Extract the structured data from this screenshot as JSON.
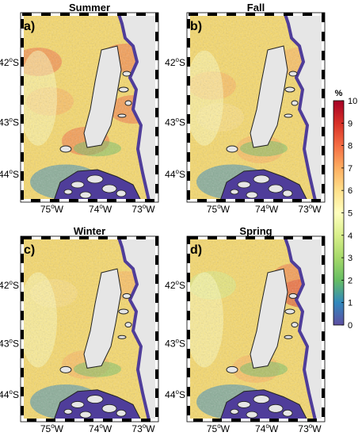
{
  "figure": {
    "panels": [
      {
        "title": "Summer",
        "label": "a)"
      },
      {
        "title": "Fall",
        "label": "b)"
      },
      {
        "title": "Winter",
        "label": "c)"
      },
      {
        "title": "Spring",
        "label": "d)"
      }
    ],
    "lat_ticks": [
      "42",
      "43",
      "44"
    ],
    "lat_suffix": "S",
    "lon_ticks": [
      "75",
      "74",
      "73"
    ],
    "lon_suffix": "W",
    "deg": "o"
  },
  "colorbar": {
    "unit": "%",
    "ticks": [
      "10",
      "9",
      "8",
      "7",
      "6",
      "5",
      "4",
      "3",
      "2",
      "1",
      "0"
    ],
    "colors": [
      "#a50026",
      "#d73027",
      "#f46d43",
      "#fdae61",
      "#fee08b",
      "#ffffbf",
      "#d9ef8b",
      "#a6d96a",
      "#66bd63",
      "#3288bd",
      "#5e4fa2"
    ]
  },
  "map_colors": {
    "land": "#e6e6e6",
    "coast": "#4f3d9a",
    "frame": "#000000",
    "ocean_base": "#f7d96a"
  }
}
